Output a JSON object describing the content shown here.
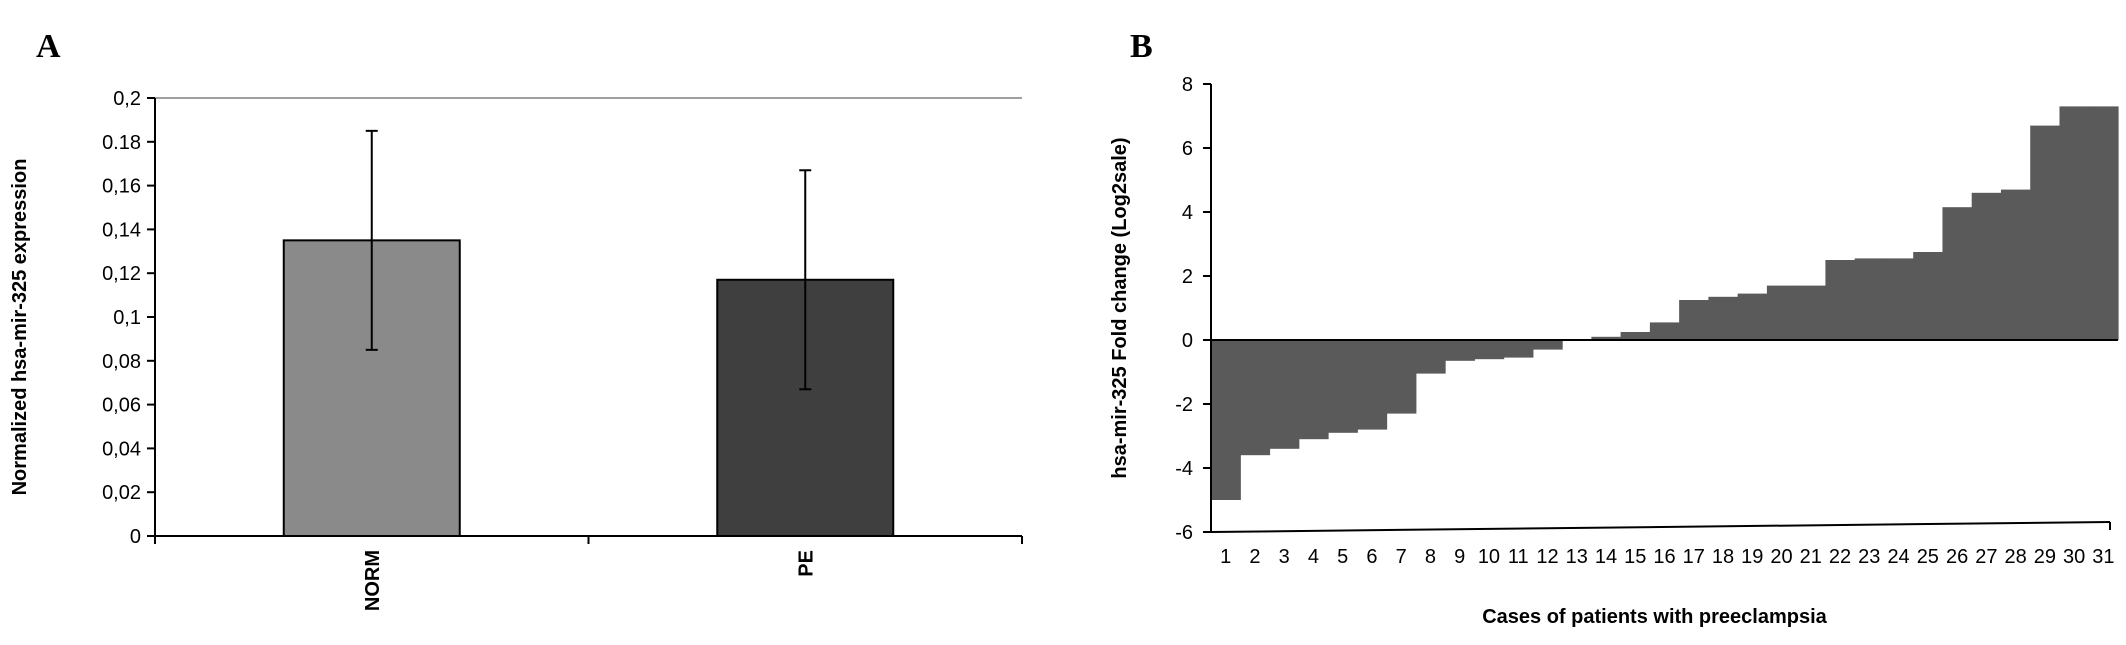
{
  "panels": {
    "a_label": "A",
    "b_label": "B"
  },
  "colors": {
    "norm_bar": "#8a8a8a",
    "pe_bar": "#3f3f3f",
    "waterfall_bar": "#5a5a5a",
    "top_line": "#a0a0a0"
  },
  "chart_data": [
    {
      "type": "bar",
      "panel": "A",
      "categories": [
        "NORM",
        "PE"
      ],
      "values": [
        0.135,
        0.117
      ],
      "error": [
        0.05,
        0.05
      ],
      "ylabel": "Normalized hsa-mir-325 expression",
      "xlabel": "",
      "ylim": [
        0,
        0.2
      ],
      "yticks": [
        "0",
        "0,02",
        "0,04",
        "0,06",
        "0,08",
        "0,1",
        "0,12",
        "0,14",
        "0,16",
        "0.18",
        "0,2"
      ],
      "grid": false
    },
    {
      "type": "bar",
      "panel": "B",
      "categories": [
        "1",
        "2",
        "3",
        "4",
        "5",
        "6",
        "7",
        "8",
        "9",
        "10",
        "11",
        "12",
        "13",
        "14",
        "15",
        "16",
        "17",
        "18",
        "19",
        "20",
        "21",
        "22",
        "23",
        "24",
        "25",
        "26",
        "27",
        "28",
        "29",
        "30",
        "31"
      ],
      "values": [
        -5.0,
        -3.6,
        -3.4,
        -3.1,
        -2.9,
        -2.8,
        -2.3,
        -1.05,
        -0.65,
        -0.6,
        -0.55,
        -0.3,
        0.0,
        0.1,
        0.25,
        0.55,
        1.25,
        1.35,
        1.45,
        1.7,
        1.7,
        2.5,
        2.55,
        2.55,
        2.75,
        4.15,
        4.6,
        4.7,
        6.7,
        7.3,
        7.3
      ],
      "xlabel": "Cases of patients with preeclampsia",
      "ylabel": "hsa-mir-325 Fold change (Log2sale)",
      "ylim": [
        -6,
        8
      ],
      "yticks": [
        "-6",
        "-4",
        "-2",
        "0",
        "2",
        "4",
        "6",
        "8"
      ],
      "grid": false
    }
  ]
}
